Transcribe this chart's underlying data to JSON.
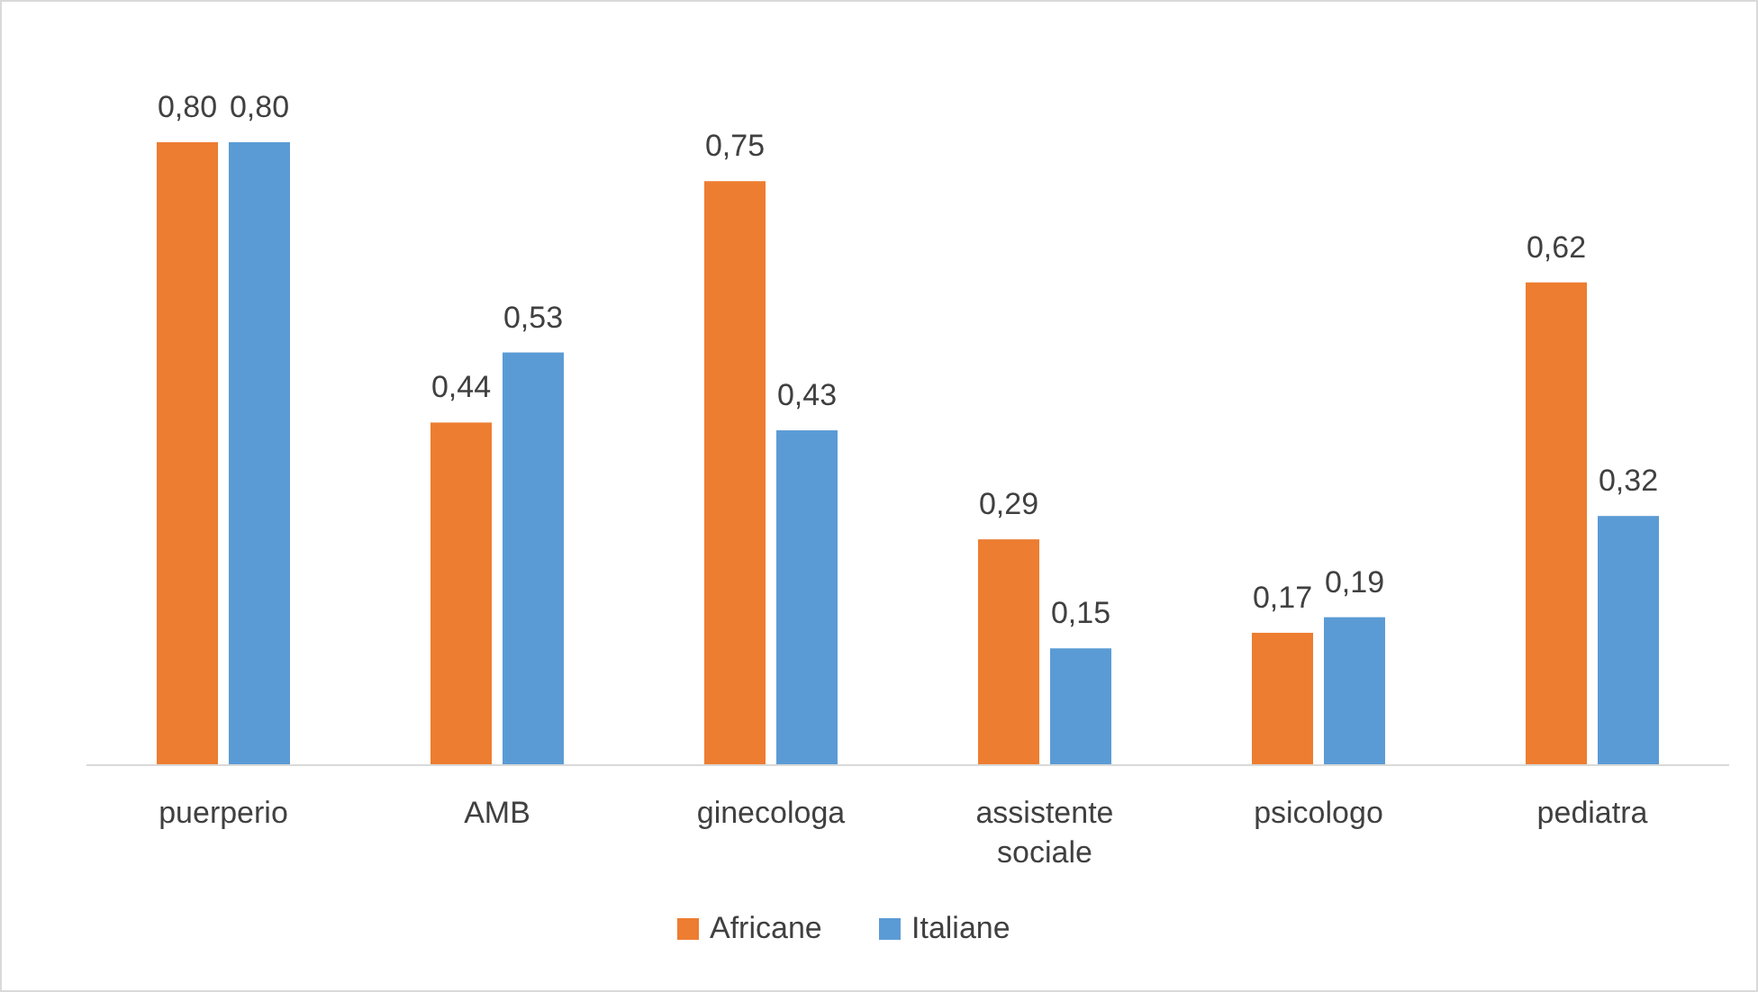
{
  "chart_data": {
    "type": "bar",
    "categories": [
      "puerperio",
      "AMB",
      "ginecologa",
      "assistente sociale",
      "psicologo",
      "pediatra"
    ],
    "series": [
      {
        "name": "Africane",
        "color": "#ed7d31",
        "values": [
          0.8,
          0.44,
          0.75,
          0.29,
          0.17,
          0.62
        ],
        "value_labels": [
          "0,80",
          "0,44",
          "0,75",
          "0,29",
          "0,17",
          "0,62"
        ]
      },
      {
        "name": "Italiane",
        "color": "#5b9bd5",
        "values": [
          0.8,
          0.53,
          0.43,
          0.15,
          0.19,
          0.32
        ],
        "value_labels": [
          "0,80",
          "0,53",
          "0,43",
          "0,15",
          "0,19",
          "0,32"
        ]
      }
    ],
    "legend": "bottom"
  }
}
